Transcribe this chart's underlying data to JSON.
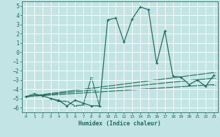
{
  "xlabel": "Humidex (Indice chaleur)",
  "background_color": "#c2e4e4",
  "grid_color": "#ffffff",
  "line_color": "#1a6b5a",
  "xlim": [
    -0.5,
    23.5
  ],
  "ylim": [
    -6.5,
    5.5
  ],
  "xticks": [
    0,
    1,
    2,
    3,
    4,
    5,
    6,
    7,
    8,
    9,
    10,
    11,
    12,
    13,
    14,
    15,
    16,
    17,
    18,
    19,
    20,
    21,
    22,
    23
  ],
  "yticks": [
    -6,
    -5,
    -4,
    -3,
    -2,
    -1,
    0,
    1,
    2,
    3,
    4,
    5
  ],
  "main_series": [
    [
      0,
      -4.8
    ],
    [
      1,
      -4.5
    ],
    [
      2,
      -4.7
    ],
    [
      3,
      -5.0
    ],
    [
      4,
      -5.2
    ],
    [
      5,
      -5.8
    ],
    [
      6,
      -5.2
    ],
    [
      7,
      -5.5
    ],
    [
      8,
      -5.8
    ],
    [
      9,
      -5.8
    ],
    [
      10,
      3.5
    ],
    [
      11,
      3.7
    ],
    [
      12,
      1.1
    ],
    [
      13,
      3.6
    ],
    [
      14,
      4.9
    ],
    [
      15,
      4.6
    ],
    [
      16,
      -1.2
    ],
    [
      17,
      2.3
    ],
    [
      18,
      -2.6
    ],
    [
      19,
      -2.7
    ],
    [
      20,
      -3.5
    ],
    [
      21,
      -3.0
    ],
    [
      22,
      -3.7
    ],
    [
      23,
      -2.5
    ]
  ],
  "extra_series": [
    [
      [
        3,
        -5.0
      ],
      [
        4,
        -5.3
      ],
      [
        5,
        -5.3
      ],
      [
        6,
        -5.8
      ],
      [
        7,
        -5.7
      ],
      [
        8,
        -2.7
      ],
      [
        9,
        -5.8
      ]
    ],
    [
      [
        0,
        -4.8
      ],
      [
        23,
        -3.5
      ]
    ],
    [
      [
        0,
        -4.8
      ],
      [
        23,
        -2.8
      ]
    ],
    [
      [
        0,
        -4.8
      ],
      [
        23,
        -2.2
      ]
    ]
  ]
}
